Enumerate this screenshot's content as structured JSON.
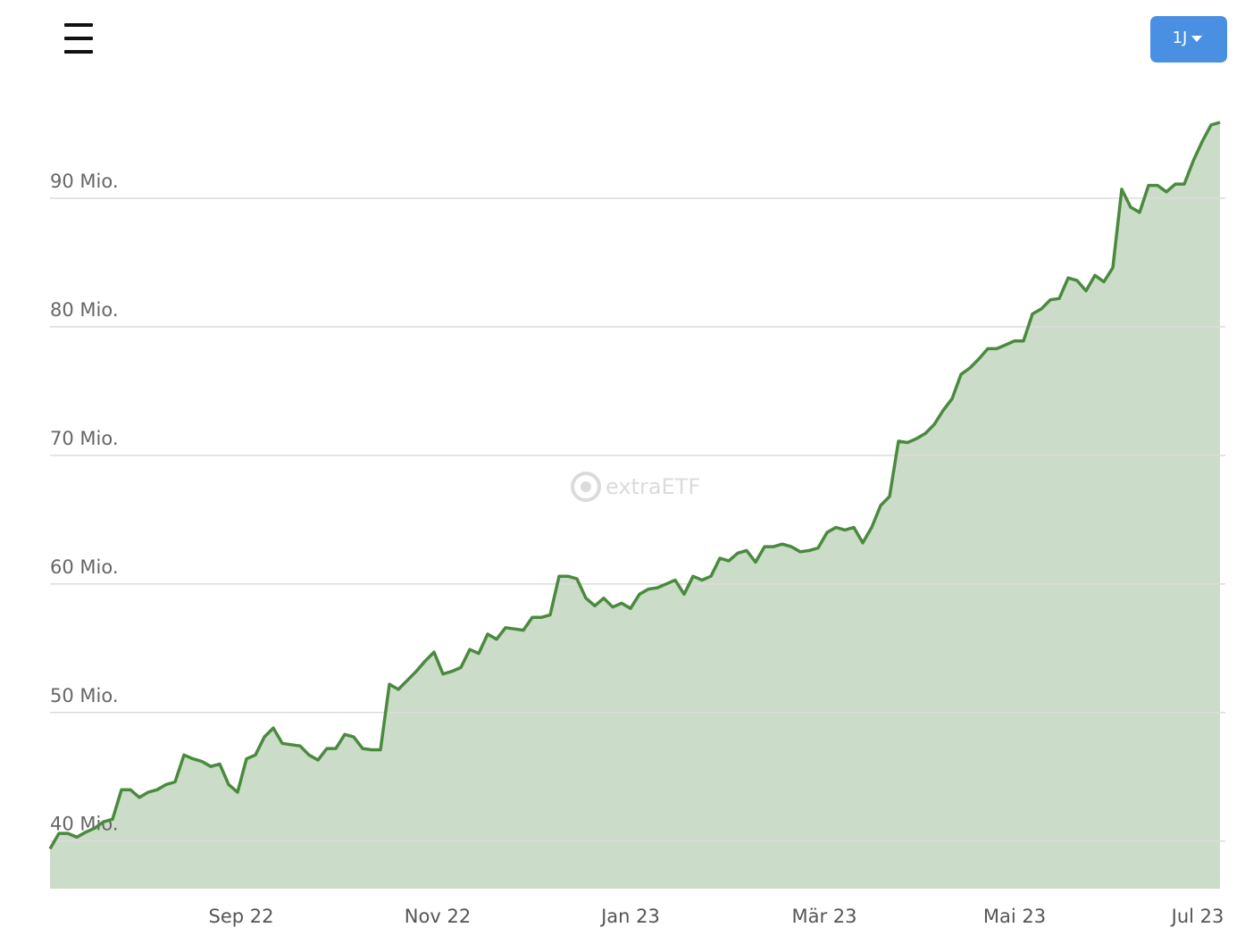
{
  "ui": {
    "range_button": "1J",
    "watermark": "extraETF"
  },
  "chart_data": {
    "type": "area",
    "color": "#4a8a3e",
    "fill": "#cbdcc8",
    "grid": true,
    "values": [
      39.4,
      40.6,
      40.6,
      40.3,
      40.7,
      41.0,
      41.5,
      41.7,
      44.0,
      44.0,
      43.4,
      43.8,
      44.0,
      44.4,
      44.6,
      46.7,
      46.4,
      46.2,
      45.8,
      46.0,
      44.4,
      43.8,
      46.4,
      46.7,
      48.1,
      48.8,
      47.6,
      47.5,
      47.4,
      46.7,
      46.3,
      47.2,
      47.2,
      48.3,
      48.1,
      47.2,
      47.1,
      47.1,
      52.2,
      51.8,
      52.5,
      53.2,
      54.0,
      54.7,
      53.0,
      53.2,
      53.5,
      54.9,
      54.6,
      56.1,
      55.7,
      56.6,
      56.5,
      56.4,
      57.4,
      57.4,
      57.6,
      60.6,
      60.6,
      60.4,
      58.9,
      58.3,
      58.9,
      58.2,
      58.5,
      58.1,
      59.2,
      59.6,
      59.7,
      60.0,
      60.3,
      59.2,
      60.6,
      60.3,
      60.6,
      62.0,
      61.8,
      62.4,
      62.6,
      61.7,
      62.9,
      62.9,
      63.1,
      62.9,
      62.5,
      62.6,
      62.8,
      64.0,
      64.4,
      64.2,
      64.4,
      63.2,
      64.4,
      66.1,
      66.8,
      71.1,
      71.0,
      71.3,
      71.7,
      72.4,
      73.5,
      74.4,
      76.3,
      76.8,
      77.5,
      78.3,
      78.3,
      78.6,
      78.9,
      78.9,
      81.0,
      81.4,
      82.1,
      82.2,
      83.8,
      83.6,
      82.8,
      84.0,
      83.5,
      84.6,
      90.7,
      89.3,
      88.9,
      91.0,
      91.0,
      90.5,
      91.1,
      91.1,
      92.9,
      94.4,
      95.7,
      95.9
    ],
    "xlim": [
      0,
      131.6
    ],
    "xticks": [
      {
        "value": 21.4,
        "label": "Sep 22"
      },
      {
        "value": 43.4,
        "label": "Nov 22"
      },
      {
        "value": 65,
        "label": "Jan 23"
      },
      {
        "value": 86.7,
        "label": "Mär 23"
      },
      {
        "value": 108,
        "label": "Mai 23"
      },
      {
        "value": 128.5,
        "label": "Jul 23"
      }
    ],
    "ylim": [
      36.3,
      100
    ],
    "yticks": [
      {
        "value": 40,
        "label": "40 Mio."
      },
      {
        "value": 50,
        "label": "50 Mio."
      },
      {
        "value": 60,
        "label": "60 Mio."
      },
      {
        "value": 70,
        "label": "70 Mio."
      },
      {
        "value": 80,
        "label": "80 Mio."
      },
      {
        "value": 90,
        "label": "90 Mio."
      }
    ]
  }
}
